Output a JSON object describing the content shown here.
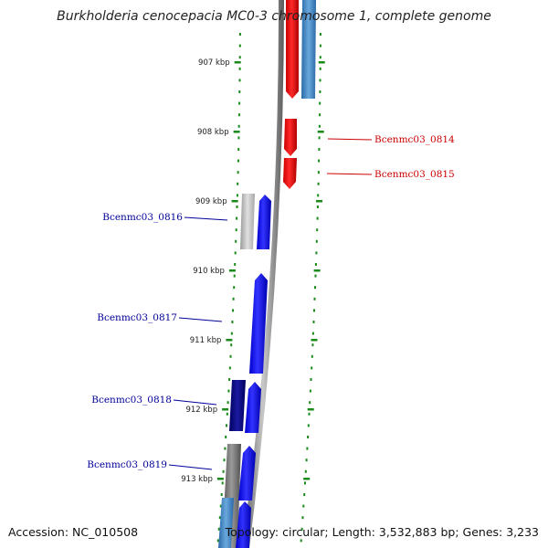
{
  "title": "Burkholderia cenocepacia MC0-3 chromosome 1, complete genome",
  "footer": {
    "accession": "Accession: NC_010508",
    "summary": "Topology: circular; Length: 3,532,883 bp; Genes: 3,233"
  },
  "colors": {
    "forward_strand": "#0000ff",
    "reverse_strand": "#ff0000",
    "tick": "#1a8a1a",
    "backbone": "#808080",
    "forward_label": "#000099",
    "reverse_label": "#cc0000"
  },
  "kbp_ticks": [
    {
      "kbp": 907,
      "label": "907 kbp"
    },
    {
      "kbp": 908,
      "label": "908 kbp"
    },
    {
      "kbp": 909,
      "label": "909 kbp"
    },
    {
      "kbp": 910,
      "label": "910 kbp"
    },
    {
      "kbp": 911,
      "label": "911 kbp"
    },
    {
      "kbp": 912,
      "label": "912 kbp"
    },
    {
      "kbp": 913,
      "label": "913 kbp"
    }
  ],
  "gene_labels": [
    {
      "name": "Bcenmc03_0814",
      "strand": "reverse"
    },
    {
      "name": "Bcenmc03_0815",
      "strand": "reverse"
    },
    {
      "name": "Bcenmc03_0816",
      "strand": "forward"
    },
    {
      "name": "Bcenmc03_0817",
      "strand": "forward"
    },
    {
      "name": "Bcenmc03_0818",
      "strand": "forward"
    },
    {
      "name": "Bcenmc03_0819",
      "strand": "forward"
    }
  ]
}
